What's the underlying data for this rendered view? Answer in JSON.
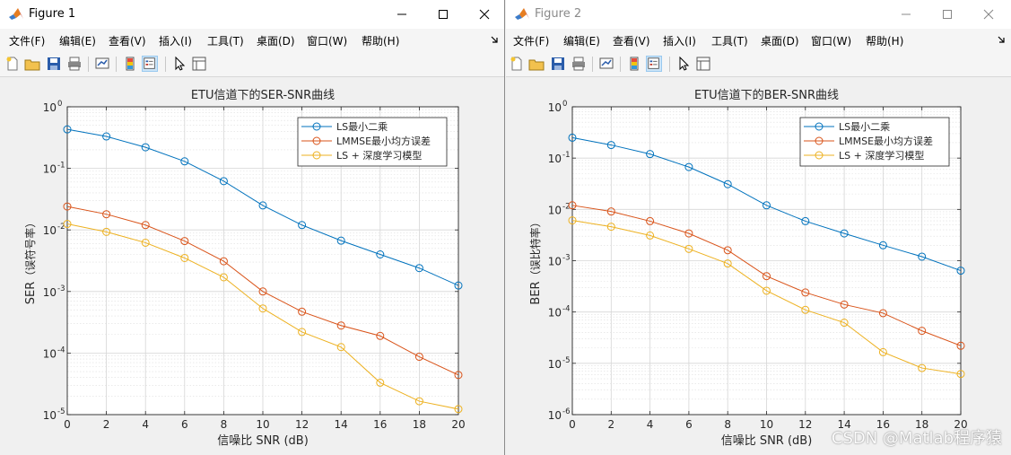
{
  "windows": [
    {
      "title": "Figure 1",
      "active": true,
      "menu": [
        "文件(F)",
        "编辑(E)",
        "查看(V)",
        "插入(I)",
        "工具(T)",
        "桌面(D)",
        "窗口(W)",
        "帮助(H)"
      ],
      "chart_data": {
        "type": "line",
        "title": "ETU信道下的SER-SNR曲线",
        "xlabel": "信噪比 SNR (dB)",
        "ylabel_main": "SER",
        "ylabel_paren": "（误符号率）",
        "y_scale": "log",
        "xlim": [
          0,
          20
        ],
        "ylim": [
          1e-05,
          1
        ],
        "x_ticks": [
          "0",
          "2",
          "4",
          "6",
          "8",
          "10",
          "12",
          "14",
          "16",
          "18",
          "20"
        ],
        "y_ticks": [
          "10",
          "10",
          "10",
          "10",
          "10",
          "10"
        ],
        "y_tick_exps": [
          "-5",
          "-4",
          "-3",
          "-2",
          "-1",
          "0"
        ],
        "grid": true,
        "legend_position": "top-right",
        "x": [
          0,
          2,
          4,
          6,
          8,
          10,
          12,
          14,
          16,
          18,
          20
        ],
        "series": [
          {
            "name": "LS最小二乘",
            "color": "#0072BD",
            "values": [
              0.43,
              0.33,
              0.22,
              0.13,
              0.062,
              0.025,
              0.012,
              0.0067,
              0.004,
              0.0024,
              0.00125
            ]
          },
          {
            "name": "LMMSE最小均方误差",
            "color": "#D95319",
            "values": [
              0.024,
              0.018,
              0.012,
              0.0066,
              0.0031,
              0.001,
              0.00047,
              0.00028,
              0.00019,
              8.7e-05,
              4.4e-05
            ]
          },
          {
            "name": "LS + 深度学习模型",
            "color": "#EDB120",
            "values": [
              0.0125,
              0.0093,
              0.0062,
              0.0035,
              0.0017,
              0.00053,
              0.00022,
              0.000125,
              3.3e-05,
              1.65e-05,
              1.23e-05
            ]
          }
        ]
      }
    },
    {
      "title": "Figure 2",
      "active": false,
      "menu": [
        "文件(F)",
        "编辑(E)",
        "查看(V)",
        "插入(I)",
        "工具(T)",
        "桌面(D)",
        "窗口(W)",
        "帮助(H)"
      ],
      "chart_data": {
        "type": "line",
        "title": "ETU信道下的BER-SNR曲线",
        "xlabel": "信噪比 SNR (dB)",
        "ylabel_main": "BER",
        "ylabel_paren": "（误比特率）",
        "y_scale": "log",
        "xlim": [
          0,
          20
        ],
        "ylim": [
          1e-06,
          1
        ],
        "x_ticks": [
          "0",
          "2",
          "4",
          "6",
          "8",
          "10",
          "12",
          "14",
          "16",
          "18",
          "20"
        ],
        "y_ticks": [
          "10",
          "10",
          "10",
          "10",
          "10",
          "10",
          "10"
        ],
        "y_tick_exps": [
          "-6",
          "-5",
          "-4",
          "-3",
          "-2",
          "-1",
          "0"
        ],
        "grid": true,
        "legend_position": "top-right",
        "x": [
          0,
          2,
          4,
          6,
          8,
          10,
          12,
          14,
          16,
          18,
          20
        ],
        "series": [
          {
            "name": "LS最小二乘",
            "color": "#0072BD",
            "values": [
              0.25,
              0.18,
              0.12,
              0.067,
              0.031,
              0.012,
              0.0059,
              0.0034,
              0.002,
              0.0012,
              0.00064
            ]
          },
          {
            "name": "LMMSE最小均方误差",
            "color": "#D95319",
            "values": [
              0.012,
              0.0091,
              0.0059,
              0.0034,
              0.0016,
              0.0005,
              0.00024,
              0.00014,
              9.5e-05,
              4.3e-05,
              2.2e-05
            ]
          },
          {
            "name": "LS + 深度学习模型",
            "color": "#EDB120",
            "values": [
              0.0061,
              0.0046,
              0.0031,
              0.0017,
              0.00088,
              0.00026,
              0.00011,
              6.2e-05,
              1.65e-05,
              8.1e-06,
              6.2e-06
            ]
          }
        ]
      }
    }
  ],
  "watermark": "CSDN @Matlab程序猿"
}
